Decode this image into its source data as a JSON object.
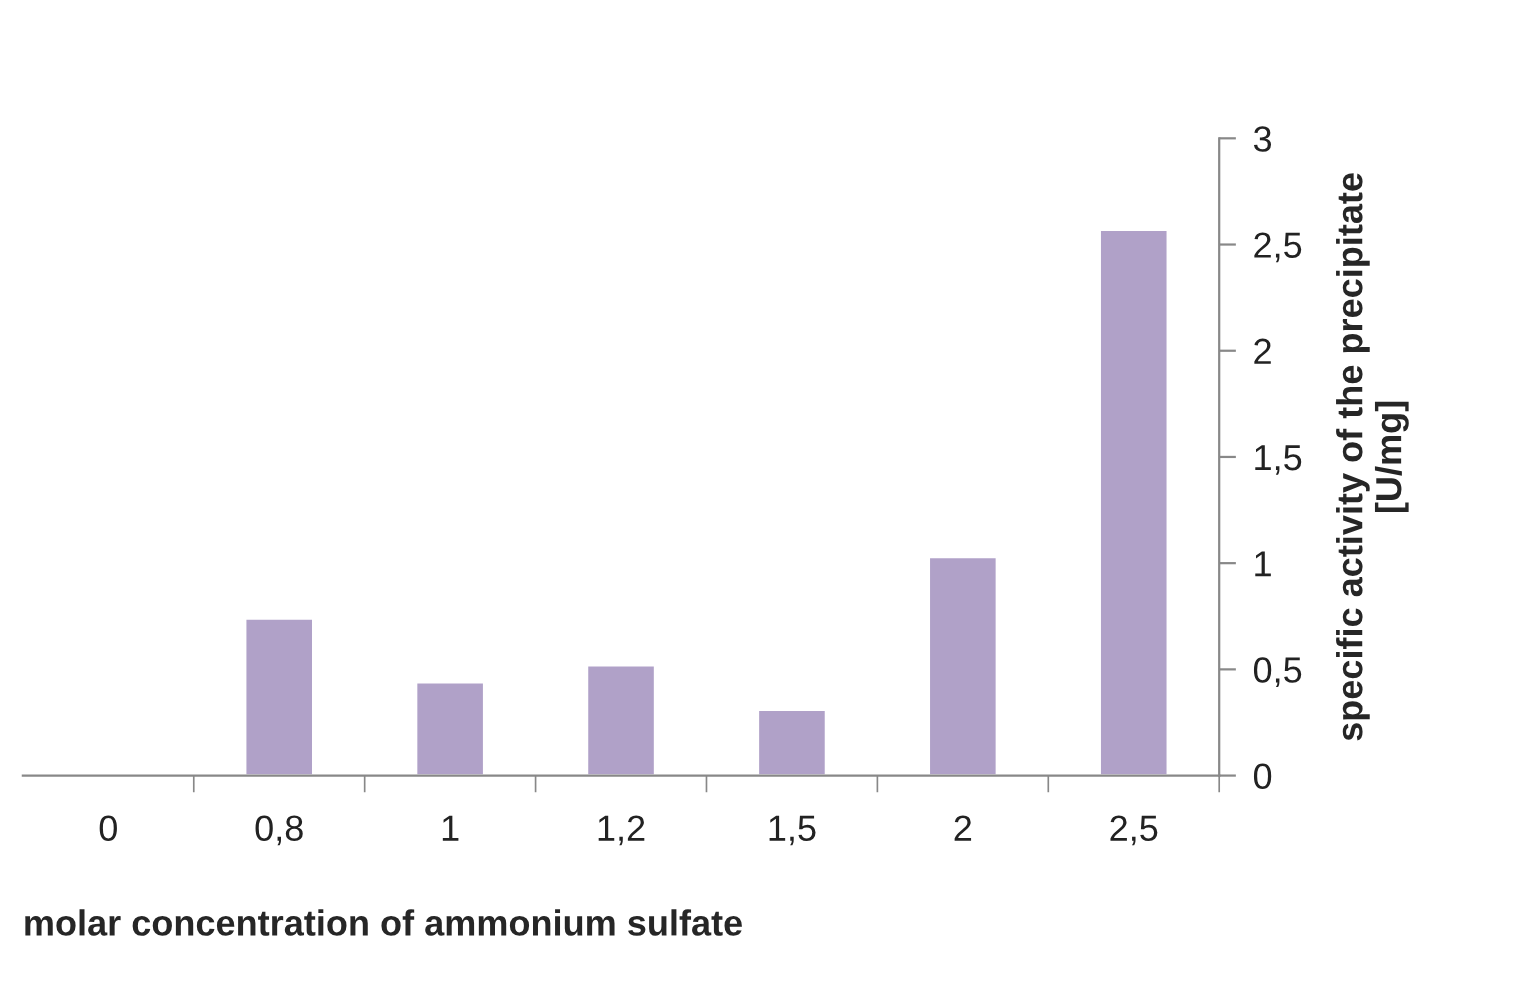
{
  "chart_data": {
    "type": "bar",
    "categories": [
      "0",
      "0,8",
      "1",
      "1,2",
      "1,5",
      "2",
      "2,5"
    ],
    "values": [
      null,
      0.74,
      0.44,
      0.52,
      0.31,
      1.03,
      2.57
    ],
    "color": "#b0a1c8",
    "xlabel": "molar concentration of ammonium sulfate",
    "ylabel": "specific activity of the precipitate\n[U/mg]",
    "ylim": [
      0,
      3
    ],
    "yticks": [
      {
        "value": 0,
        "label": "0"
      },
      {
        "value": 0.5,
        "label": "0,5"
      },
      {
        "value": 1,
        "label": "1"
      },
      {
        "value": 1.5,
        "label": "1,5"
      },
      {
        "value": 2,
        "label": "2"
      },
      {
        "value": 2.5,
        "label": "2,5"
      },
      {
        "value": 3,
        "label": "3"
      }
    ],
    "grid": false,
    "legend": false
  }
}
